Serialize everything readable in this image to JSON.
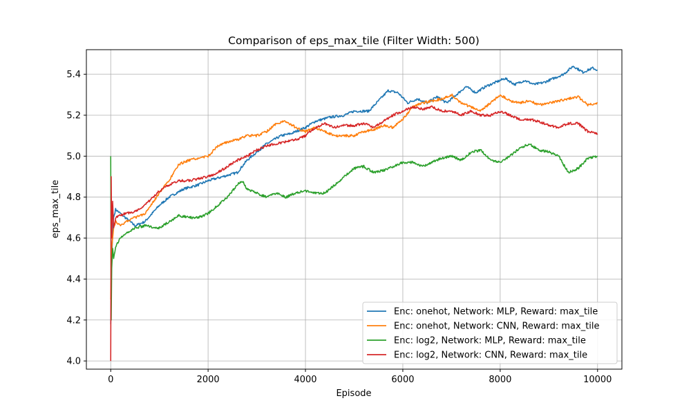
{
  "chart_data": {
    "type": "line",
    "title": "Comparison of eps_max_tile (Filter Width: 500)",
    "xlabel": "Episode",
    "ylabel": "eps_max_tile",
    "xlim": [
      -500,
      10500
    ],
    "ylim": [
      3.96,
      5.52
    ],
    "xticks": [
      0,
      2000,
      4000,
      6000,
      8000,
      10000
    ],
    "xtick_labels": [
      "0",
      "2000",
      "4000",
      "6000",
      "8000",
      "10000"
    ],
    "yticks": [
      4.0,
      4.2,
      4.4,
      4.6,
      4.8,
      5.0,
      5.2,
      5.4
    ],
    "ytick_labels": [
      "4.0",
      "4.2",
      "4.4",
      "4.6",
      "4.8",
      "5.0",
      "5.2",
      "5.4"
    ],
    "grid": true,
    "legend_position": "lower-right",
    "series": [
      {
        "name": "Enc: onehot, Network: MLP, Reward: max_tile",
        "color": "#1f77b4",
        "points": [
          [
            0,
            4.18
          ],
          [
            20,
            4.5
          ],
          [
            40,
            4.62
          ],
          [
            60,
            4.7
          ],
          [
            100,
            4.74
          ],
          [
            200,
            4.72
          ],
          [
            300,
            4.7
          ],
          [
            500,
            4.66
          ],
          [
            700,
            4.68
          ],
          [
            1000,
            4.76
          ],
          [
            1200,
            4.8
          ],
          [
            1500,
            4.84
          ],
          [
            1800,
            4.86
          ],
          [
            2000,
            4.88
          ],
          [
            2300,
            4.9
          ],
          [
            2600,
            4.92
          ],
          [
            2800,
            4.98
          ],
          [
            3000,
            5.02
          ],
          [
            3200,
            5.06
          ],
          [
            3500,
            5.1
          ],
          [
            3700,
            5.11
          ],
          [
            4000,
            5.14
          ],
          [
            4200,
            5.17
          ],
          [
            4500,
            5.19
          ],
          [
            4800,
            5.2
          ],
          [
            5000,
            5.22
          ],
          [
            5300,
            5.22
          ],
          [
            5500,
            5.27
          ],
          [
            5700,
            5.32
          ],
          [
            5900,
            5.31
          ],
          [
            6100,
            5.26
          ],
          [
            6300,
            5.28
          ],
          [
            6500,
            5.26
          ],
          [
            6700,
            5.29
          ],
          [
            6900,
            5.26
          ],
          [
            7100,
            5.3
          ],
          [
            7300,
            5.34
          ],
          [
            7500,
            5.31
          ],
          [
            7700,
            5.34
          ],
          [
            7900,
            5.36
          ],
          [
            8100,
            5.38
          ],
          [
            8300,
            5.35
          ],
          [
            8500,
            5.37
          ],
          [
            8700,
            5.35
          ],
          [
            8900,
            5.36
          ],
          [
            9100,
            5.38
          ],
          [
            9300,
            5.4
          ],
          [
            9500,
            5.44
          ],
          [
            9700,
            5.41
          ],
          [
            9900,
            5.43
          ],
          [
            10000,
            5.42
          ]
        ]
      },
      {
        "name": "Enc: onehot, Network: CNN, Reward: max_tile",
        "color": "#ff7f0e",
        "points": [
          [
            0,
            4.3
          ],
          [
            20,
            4.55
          ],
          [
            40,
            4.6
          ],
          [
            60,
            4.65
          ],
          [
            100,
            4.68
          ],
          [
            200,
            4.66
          ],
          [
            300,
            4.68
          ],
          [
            500,
            4.7
          ],
          [
            700,
            4.72
          ],
          [
            1000,
            4.82
          ],
          [
            1200,
            4.88
          ],
          [
            1400,
            4.96
          ],
          [
            1600,
            4.98
          ],
          [
            1800,
            4.99
          ],
          [
            2000,
            5.0
          ],
          [
            2200,
            5.05
          ],
          [
            2400,
            5.07
          ],
          [
            2600,
            5.08
          ],
          [
            2800,
            5.1
          ],
          [
            3000,
            5.1
          ],
          [
            3200,
            5.12
          ],
          [
            3400,
            5.16
          ],
          [
            3600,
            5.17
          ],
          [
            3800,
            5.14
          ],
          [
            4000,
            5.12
          ],
          [
            4200,
            5.14
          ],
          [
            4400,
            5.12
          ],
          [
            4600,
            5.1
          ],
          [
            4800,
            5.1
          ],
          [
            5000,
            5.1
          ],
          [
            5200,
            5.12
          ],
          [
            5400,
            5.13
          ],
          [
            5600,
            5.15
          ],
          [
            5800,
            5.14
          ],
          [
            6000,
            5.18
          ],
          [
            6200,
            5.24
          ],
          [
            6400,
            5.26
          ],
          [
            6600,
            5.27
          ],
          [
            6800,
            5.28
          ],
          [
            7000,
            5.3
          ],
          [
            7200,
            5.26
          ],
          [
            7400,
            5.24
          ],
          [
            7600,
            5.22
          ],
          [
            7800,
            5.26
          ],
          [
            8000,
            5.3
          ],
          [
            8200,
            5.27
          ],
          [
            8400,
            5.26
          ],
          [
            8600,
            5.27
          ],
          [
            8800,
            5.25
          ],
          [
            9000,
            5.26
          ],
          [
            9200,
            5.27
          ],
          [
            9400,
            5.28
          ],
          [
            9600,
            5.29
          ],
          [
            9800,
            5.25
          ],
          [
            10000,
            5.26
          ]
        ]
      },
      {
        "name": "Enc: log2, Network: MLP, Reward: max_tile",
        "color": "#2ca02c",
        "points": [
          [
            0,
            5.0
          ],
          [
            10,
            4.2
          ],
          [
            20,
            4.45
          ],
          [
            40,
            4.55
          ],
          [
            60,
            4.5
          ],
          [
            100,
            4.56
          ],
          [
            200,
            4.6
          ],
          [
            300,
            4.62
          ],
          [
            500,
            4.65
          ],
          [
            700,
            4.66
          ],
          [
            1000,
            4.65
          ],
          [
            1200,
            4.68
          ],
          [
            1400,
            4.71
          ],
          [
            1600,
            4.7
          ],
          [
            1800,
            4.7
          ],
          [
            2000,
            4.72
          ],
          [
            2200,
            4.76
          ],
          [
            2400,
            4.8
          ],
          [
            2600,
            4.86
          ],
          [
            2700,
            4.88
          ],
          [
            2800,
            4.84
          ],
          [
            3000,
            4.82
          ],
          [
            3200,
            4.8
          ],
          [
            3400,
            4.82
          ],
          [
            3600,
            4.8
          ],
          [
            3800,
            4.82
          ],
          [
            4000,
            4.83
          ],
          [
            4200,
            4.82
          ],
          [
            4400,
            4.82
          ],
          [
            4600,
            4.86
          ],
          [
            4800,
            4.9
          ],
          [
            5000,
            4.94
          ],
          [
            5200,
            4.95
          ],
          [
            5400,
            4.92
          ],
          [
            5600,
            4.93
          ],
          [
            5800,
            4.95
          ],
          [
            6000,
            4.97
          ],
          [
            6200,
            4.97
          ],
          [
            6400,
            4.95
          ],
          [
            6600,
            4.97
          ],
          [
            6800,
            4.99
          ],
          [
            7000,
            5.0
          ],
          [
            7200,
            4.98
          ],
          [
            7400,
            5.02
          ],
          [
            7600,
            5.03
          ],
          [
            7800,
            4.98
          ],
          [
            8000,
            4.97
          ],
          [
            8200,
            5.0
          ],
          [
            8400,
            5.04
          ],
          [
            8600,
            5.06
          ],
          [
            8800,
            5.03
          ],
          [
            9000,
            5.02
          ],
          [
            9200,
            5.0
          ],
          [
            9400,
            4.92
          ],
          [
            9600,
            4.94
          ],
          [
            9800,
            4.99
          ],
          [
            10000,
            5.0
          ]
        ]
      },
      {
        "name": "Enc: log2, Network: CNN, Reward: max_tile",
        "color": "#d62728",
        "points": [
          [
            0,
            4.0
          ],
          [
            10,
            4.9
          ],
          [
            20,
            4.6
          ],
          [
            40,
            4.78
          ],
          [
            60,
            4.65
          ],
          [
            100,
            4.7
          ],
          [
            200,
            4.71
          ],
          [
            300,
            4.72
          ],
          [
            500,
            4.73
          ],
          [
            700,
            4.76
          ],
          [
            1000,
            4.83
          ],
          [
            1200,
            4.86
          ],
          [
            1400,
            4.88
          ],
          [
            1600,
            4.88
          ],
          [
            1800,
            4.89
          ],
          [
            2000,
            4.9
          ],
          [
            2200,
            4.92
          ],
          [
            2400,
            4.95
          ],
          [
            2600,
            4.98
          ],
          [
            2800,
            5.0
          ],
          [
            3000,
            5.03
          ],
          [
            3200,
            5.05
          ],
          [
            3400,
            5.06
          ],
          [
            3600,
            5.07
          ],
          [
            3800,
            5.08
          ],
          [
            4000,
            5.1
          ],
          [
            4200,
            5.14
          ],
          [
            4400,
            5.16
          ],
          [
            4600,
            5.14
          ],
          [
            4800,
            5.15
          ],
          [
            5000,
            5.15
          ],
          [
            5200,
            5.16
          ],
          [
            5400,
            5.14
          ],
          [
            5600,
            5.17
          ],
          [
            5800,
            5.2
          ],
          [
            6000,
            5.22
          ],
          [
            6200,
            5.24
          ],
          [
            6400,
            5.23
          ],
          [
            6600,
            5.24
          ],
          [
            6800,
            5.22
          ],
          [
            7000,
            5.22
          ],
          [
            7200,
            5.2
          ],
          [
            7400,
            5.22
          ],
          [
            7600,
            5.2
          ],
          [
            7800,
            5.2
          ],
          [
            8000,
            5.22
          ],
          [
            8200,
            5.2
          ],
          [
            8400,
            5.18
          ],
          [
            8600,
            5.18
          ],
          [
            8800,
            5.17
          ],
          [
            9000,
            5.15
          ],
          [
            9200,
            5.14
          ],
          [
            9400,
            5.16
          ],
          [
            9600,
            5.16
          ],
          [
            9800,
            5.12
          ],
          [
            10000,
            5.11
          ]
        ]
      }
    ]
  }
}
